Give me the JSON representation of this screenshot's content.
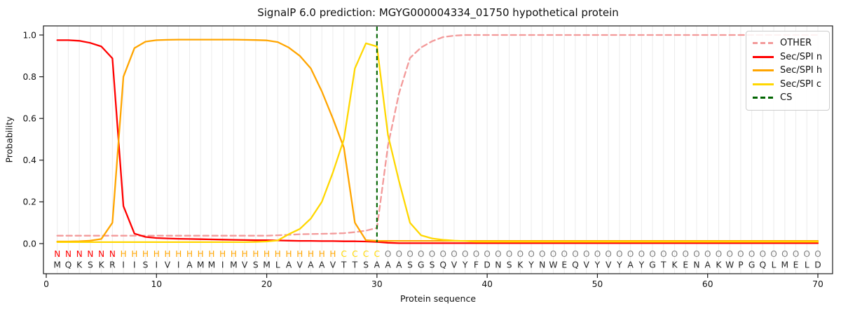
{
  "chart_data": {
    "type": "line",
    "title": "SignalP 6.0 prediction: MGYG000004334_01750 hypothetical protein",
    "xlabel": "Protein sequence",
    "ylabel": "Probability",
    "xlim": [
      -0.3,
      71.3
    ],
    "ylim": [
      -0.14,
      1.04
    ],
    "xticks": [
      0,
      10,
      20,
      30,
      40,
      50,
      60,
      70
    ],
    "yticks": [
      "0.0",
      "0.2",
      "0.4",
      "0.6",
      "0.8",
      "1.0"
    ],
    "grid": "vertical line at every residue position, light gray",
    "legend_position": "upper right, inside axes",
    "x_range": [
      1,
      70
    ],
    "x_step": 1,
    "series": [
      {
        "name": "OTHER",
        "color": "#f39a9a",
        "style": "dashed",
        "values": [
          0.038,
          0.038,
          0.038,
          0.038,
          0.038,
          0.038,
          0.038,
          0.038,
          0.038,
          0.038,
          0.038,
          0.038,
          0.038,
          0.038,
          0.038,
          0.038,
          0.038,
          0.038,
          0.038,
          0.038,
          0.04,
          0.042,
          0.045,
          0.046,
          0.047,
          0.048,
          0.05,
          0.055,
          0.062,
          0.075,
          0.47,
          0.72,
          0.89,
          0.94,
          0.97,
          0.99,
          0.997,
          1.0,
          1.0,
          1.0,
          1.0,
          1.0,
          1.0,
          1.0,
          1.0,
          1.0,
          1.0,
          1.0,
          1.0,
          1.0,
          1.0,
          1.0,
          1.0,
          1.0,
          1.0,
          1.0,
          1.0,
          1.0,
          1.0,
          1.0,
          1.0,
          1.0,
          1.0,
          1.0,
          1.0,
          1.0,
          1.0,
          1.0,
          1.0,
          1.0
        ]
      },
      {
        "name": "Sec/SPI n",
        "color": "#ff0000",
        "style": "solid",
        "values": [
          0.975,
          0.975,
          0.972,
          0.962,
          0.945,
          0.888,
          0.18,
          0.048,
          0.032,
          0.027,
          0.025,
          0.023,
          0.022,
          0.021,
          0.02,
          0.019,
          0.018,
          0.017,
          0.016,
          0.016,
          0.015,
          0.014,
          0.013,
          0.013,
          0.012,
          0.012,
          0.011,
          0.011,
          0.01,
          0.008,
          0.004,
          0.002,
          0.002,
          0.002,
          0.002,
          0.002,
          0.002,
          0.002,
          0.002,
          0.002,
          0.002,
          0.002,
          0.002,
          0.002,
          0.002,
          0.002,
          0.002,
          0.002,
          0.002,
          0.002,
          0.002,
          0.002,
          0.002,
          0.002,
          0.002,
          0.002,
          0.002,
          0.002,
          0.002,
          0.002,
          0.002,
          0.002,
          0.002,
          0.002,
          0.002,
          0.002,
          0.002,
          0.002,
          0.002,
          0.002
        ]
      },
      {
        "name": "Sec/SPI h",
        "color": "#ffa500",
        "style": "solid",
        "values": [
          0.01,
          0.01,
          0.011,
          0.014,
          0.022,
          0.1,
          0.8,
          0.937,
          0.968,
          0.975,
          0.977,
          0.978,
          0.978,
          0.978,
          0.978,
          0.978,
          0.978,
          0.977,
          0.976,
          0.974,
          0.966,
          0.94,
          0.9,
          0.84,
          0.73,
          0.6,
          0.46,
          0.1,
          0.016,
          0.013,
          0.013,
          0.013,
          0.013,
          0.013,
          0.013,
          0.013,
          0.013,
          0.013,
          0.013,
          0.013,
          0.013,
          0.013,
          0.013,
          0.013,
          0.013,
          0.013,
          0.013,
          0.013,
          0.013,
          0.013,
          0.013,
          0.013,
          0.013,
          0.013,
          0.013,
          0.013,
          0.013,
          0.013,
          0.013,
          0.013,
          0.013,
          0.013,
          0.013,
          0.013,
          0.013,
          0.013,
          0.013,
          0.013,
          0.013,
          0.013
        ]
      },
      {
        "name": "Sec/SPI c",
        "color": "#ffd700",
        "style": "solid",
        "values": [
          0.007,
          0.007,
          0.007,
          0.007,
          0.007,
          0.007,
          0.007,
          0.007,
          0.007,
          0.007,
          0.007,
          0.007,
          0.007,
          0.007,
          0.007,
          0.007,
          0.007,
          0.007,
          0.008,
          0.01,
          0.015,
          0.045,
          0.07,
          0.12,
          0.2,
          0.34,
          0.5,
          0.84,
          0.96,
          0.945,
          0.52,
          0.3,
          0.1,
          0.04,
          0.025,
          0.018,
          0.014,
          0.012,
          0.009,
          0.009,
          0.009,
          0.009,
          0.009,
          0.009,
          0.009,
          0.009,
          0.009,
          0.009,
          0.009,
          0.009,
          0.009,
          0.009,
          0.009,
          0.009,
          0.009,
          0.009,
          0.009,
          0.009,
          0.009,
          0.009,
          0.009,
          0.009,
          0.009,
          0.009,
          0.009,
          0.009,
          0.009,
          0.009,
          0.009,
          0.009
        ]
      }
    ],
    "cs_marker": {
      "label": "CS",
      "position": 30,
      "color": "#006400",
      "style": "dashed-vertical-line"
    },
    "legend": [
      {
        "label": "OTHER",
        "color": "#f39a9a",
        "dashed": true
      },
      {
        "label": "Sec/SPI n",
        "color": "#ff0000",
        "dashed": false
      },
      {
        "label": "Sec/SPI h",
        "color": "#ffa500",
        "dashed": false
      },
      {
        "label": "Sec/SPI c",
        "color": "#ffd700",
        "dashed": false
      },
      {
        "label": "CS",
        "color": "#006400",
        "dashed": true
      }
    ],
    "sequence": "MQKSKRIISIVIAMMIMVSMLAVAAVTTSAAASGSQVYFDNSKYNWEQVYVYAYGTKENAKWPGQLMELD",
    "region_labels": "NNNNNNHHHHHHHHHHHHHHHHHHHHCCCCOOOOOOOOOOOOOOOOOOOOOOOOOOOOOOOOOOOOOOOO",
    "region_colors": {
      "N": "#ff0000",
      "H": "#ffa500",
      "C": "#ffd700",
      "O": "#7f7f7f"
    },
    "sequence_color": "#262626"
  }
}
